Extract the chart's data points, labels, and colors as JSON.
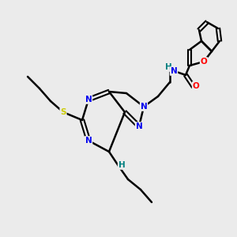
{
  "background_color": "#ebebeb",
  "atom_colors": {
    "N": "#0000ee",
    "NH": "#008080",
    "S": "#cccc00",
    "O": "#ff0000",
    "C": "#000000"
  },
  "figsize": [
    3.0,
    3.0
  ],
  "dpi": 100
}
